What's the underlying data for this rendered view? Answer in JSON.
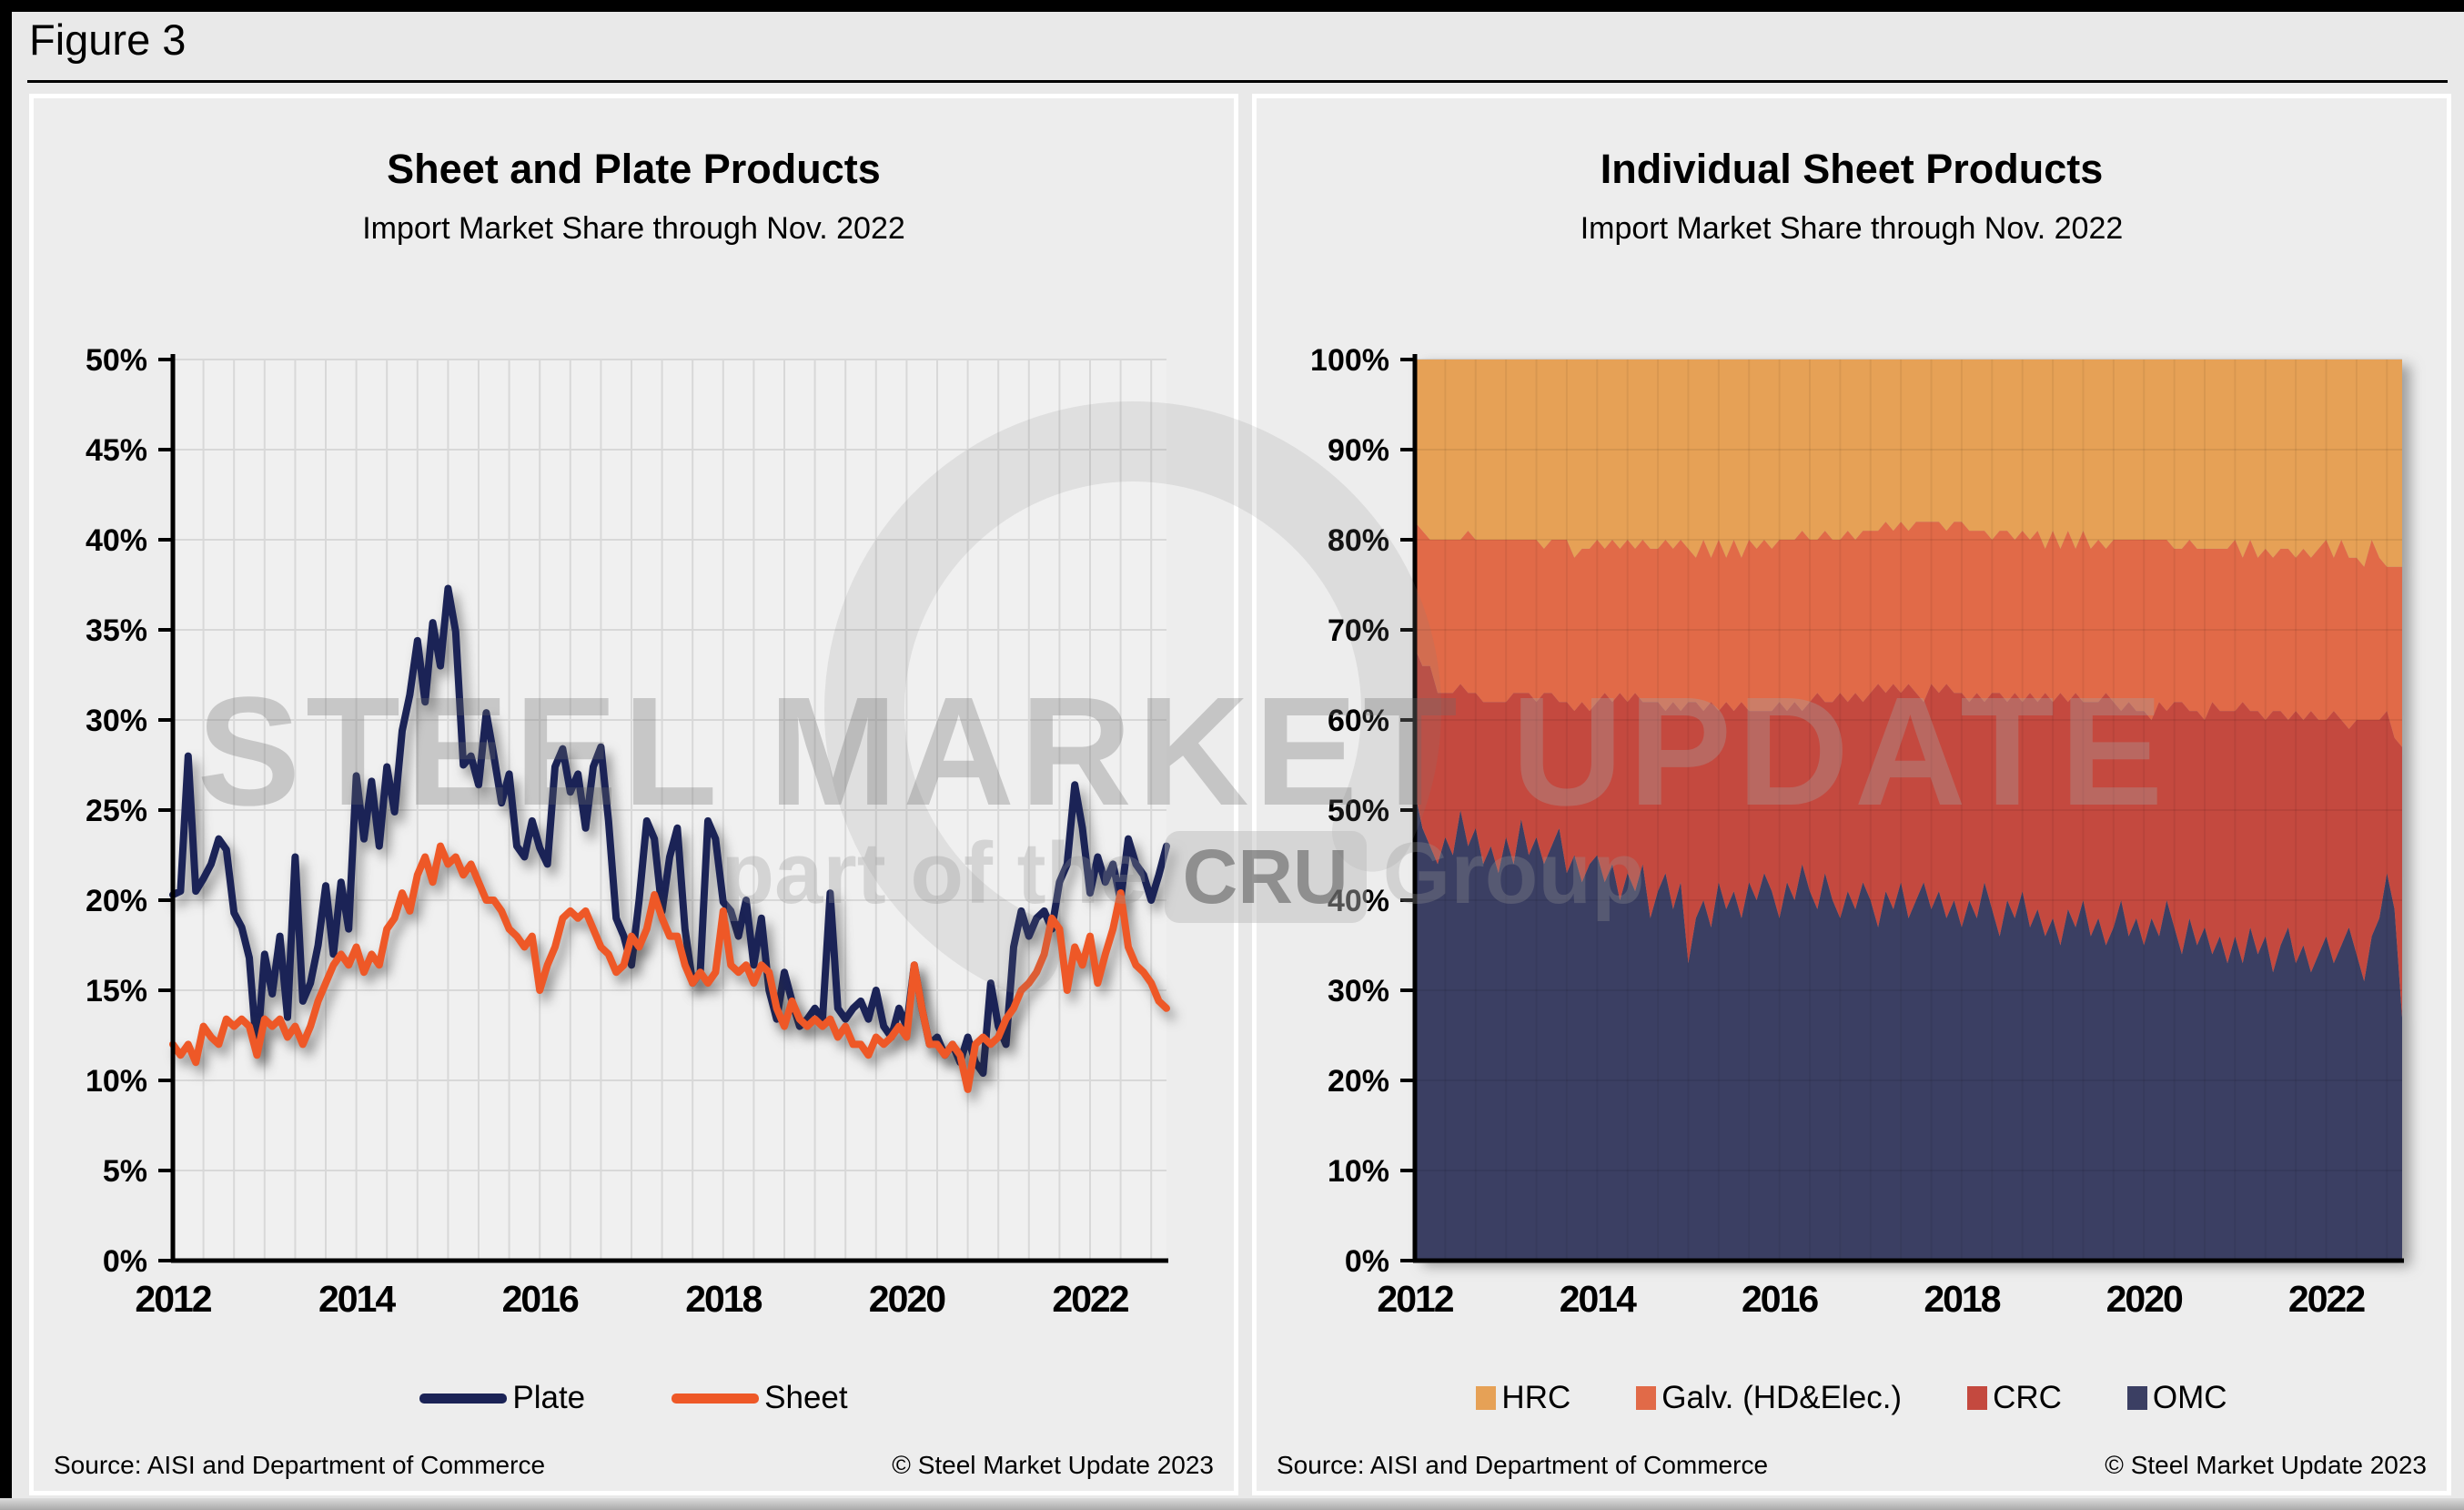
{
  "page": {
    "figure_label": "Figure 3"
  },
  "watermark": {
    "line1_strong": "STEEL MARKET",
    "line1_light": " UPDATE",
    "line2_prefix": "part of the",
    "line2_badge": "CRU",
    "line2_suffix": "Group"
  },
  "chart_data": [
    {
      "type": "line",
      "title": "Sheet and Plate Products",
      "subtitle": "Import Market Share through Nov. 2022",
      "x_start": "Jan 2012",
      "x_end": "Nov 2022",
      "x_frequency": "monthly",
      "x_tick_labels": [
        "2012",
        "2014",
        "2016",
        "2018",
        "2020",
        "2022"
      ],
      "x_tick_month_index": [
        0,
        24,
        48,
        72,
        96,
        120
      ],
      "grid_interval_months": 4,
      "y_tick_labels": [
        "0%",
        "5%",
        "10%",
        "15%",
        "20%",
        "25%",
        "30%",
        "35%",
        "40%",
        "45%",
        "50%"
      ],
      "ylim": [
        0,
        50
      ],
      "grid": true,
      "legend_position": "bottom",
      "plot_bg": "#f0f0f0",
      "grid_color": "#d8d8d8",
      "legend": [
        {
          "label": "Plate",
          "color": "#1b2356"
        },
        {
          "label": "Sheet",
          "color": "#ee5827"
        }
      ],
      "series": [
        {
          "name": "Plate",
          "color": "#1b2356",
          "values": [
            20.3,
            20.5,
            28,
            20.5,
            21.2,
            22,
            23.4,
            22.8,
            19.3,
            18.5,
            16.8,
            11.5,
            17,
            14.8,
            18,
            13.5,
            22.4,
            14.4,
            15.4,
            17.5,
            20.8,
            17,
            21,
            18.4,
            26.9,
            23.4,
            26.6,
            23,
            27.4,
            24.9,
            29.4,
            31.4,
            34.4,
            31,
            35.4,
            33,
            37.3,
            34.9,
            27.5,
            28,
            26.4,
            30.4,
            28,
            25.4,
            27,
            23,
            22.4,
            24.4,
            22.9,
            22,
            27.4,
            28.4,
            26,
            27,
            24,
            27.4,
            28.5,
            24.4,
            19,
            18,
            16.4,
            20,
            24.4,
            23.4,
            19.4,
            22.4,
            24,
            18.4,
            15.4,
            16,
            24.4,
            23.4,
            19.9,
            19.4,
            18,
            20,
            16.4,
            19,
            15,
            13.4,
            16,
            14.4,
            13,
            13.4,
            14,
            13.4,
            20.4,
            14,
            13.4,
            14,
            14.4,
            13.4,
            15,
            13,
            12.4,
            14,
            13,
            16.4,
            14,
            12,
            12.4,
            11.4,
            12,
            11,
            12.4,
            11,
            10.4,
            15.4,
            13,
            12,
            17.4,
            19.4,
            18,
            19,
            19.4,
            18.4,
            21,
            22,
            26.4,
            24,
            20.4,
            22.4,
            21,
            22,
            20,
            23.4,
            22,
            21.4,
            20,
            21.4,
            23
          ]
        },
        {
          "name": "Sheet",
          "color": "#ee5827",
          "values": [
            12,
            11.4,
            12,
            11,
            13,
            12.4,
            12,
            13.4,
            13,
            13.4,
            13,
            11.4,
            13.4,
            13,
            13.4,
            12.4,
            13,
            12,
            13,
            14.4,
            15.4,
            16.4,
            17,
            16.4,
            17.4,
            16,
            17,
            16.4,
            18.4,
            19,
            20.4,
            19.4,
            21.4,
            22.4,
            21,
            23,
            22,
            22.4,
            21.4,
            22,
            21,
            20,
            20,
            19.4,
            18.4,
            18,
            17.4,
            18,
            15,
            16.4,
            17.4,
            19,
            19.4,
            19,
            19.4,
            18.4,
            17.4,
            17,
            16,
            16.4,
            18,
            17.4,
            18.4,
            20.3,
            19,
            18,
            18,
            16.4,
            15.4,
            16,
            15.4,
            16,
            19.4,
            16.4,
            16,
            16.4,
            15.4,
            16.4,
            16,
            14,
            13,
            14.4,
            13.4,
            13,
            13.4,
            13,
            13.4,
            12.4,
            13,
            12,
            12,
            11.4,
            12.4,
            12,
            12.4,
            13,
            12.4,
            16.4,
            14,
            12,
            12,
            11.4,
            12,
            11.4,
            9.5,
            12,
            12.4,
            12,
            12.4,
            13.4,
            14,
            15,
            15.4,
            16,
            17,
            19,
            18.4,
            15,
            17.4,
            16.4,
            18,
            15.4,
            17,
            18.4,
            20.4,
            17.4,
            16.4,
            16,
            15.4,
            14.4,
            14
          ]
        }
      ],
      "source": "Source: AISI and Department of Commerce",
      "copyright": "© Steel Market Update 2023"
    },
    {
      "type": "area",
      "stacked": true,
      "title": "Individual Sheet Products",
      "subtitle": "Import Market Share through Nov. 2022",
      "x_start": "Jan 2012",
      "x_end": "Nov 2022",
      "x_frequency": "monthly",
      "x_tick_labels": [
        "2012",
        "2014",
        "2016",
        "2018",
        "2020",
        "2022"
      ],
      "x_tick_month_index": [
        0,
        24,
        48,
        72,
        96,
        120
      ],
      "grid_interval_months": 4,
      "y_tick_labels": [
        "0%",
        "10%",
        "20%",
        "30%",
        "40%",
        "50%",
        "60%",
        "70%",
        "80%",
        "90%",
        "100%"
      ],
      "ylim": [
        0,
        100
      ],
      "grid": true,
      "legend_position": "bottom",
      "plot_bg": "#f0f0f0",
      "grid_color": "#d8d8d8",
      "legend": [
        {
          "label": "HRC",
          "color": "#e6a156"
        },
        {
          "label": "Galv. (HD&Elec.)",
          "color": "#e16a48"
        },
        {
          "label": "CRC",
          "color": "#c4493f"
        },
        {
          "label": "OMC",
          "color": "#3b3f63"
        }
      ],
      "series": [
        {
          "name": "OMC",
          "color": "#3b3f63",
          "values": [
            52,
            48,
            46,
            44,
            47,
            45,
            50,
            46,
            48,
            44,
            46,
            43,
            47,
            44,
            49,
            45,
            47,
            44,
            46,
            48,
            43,
            45,
            42,
            44,
            45,
            42,
            44,
            40,
            43,
            41,
            44,
            38,
            41,
            43,
            39,
            42,
            33,
            38,
            40,
            37,
            42,
            39,
            41,
            38,
            42,
            40,
            43,
            41,
            38,
            42,
            40,
            44,
            41,
            39,
            43,
            40,
            38,
            41,
            39,
            42,
            40,
            37,
            41,
            39,
            42,
            38,
            40,
            42,
            39,
            41,
            38,
            40,
            37,
            40,
            38,
            42,
            39,
            36,
            40,
            38,
            41,
            37,
            39,
            36,
            38,
            35,
            39,
            37,
            40,
            36,
            38,
            35,
            37,
            40,
            36,
            38,
            35,
            38,
            36,
            40,
            37,
            34,
            38,
            35,
            37,
            34,
            36,
            33,
            36,
            33,
            37,
            34,
            36,
            32,
            35,
            37,
            33,
            35,
            32,
            34,
            36,
            33,
            35,
            37,
            34,
            31,
            36,
            38,
            43,
            39,
            27
          ]
        },
        {
          "name": "CRC",
          "color": "#c4493f",
          "values": [
            16,
            18,
            20,
            19,
            16,
            18,
            14,
            17,
            15,
            18,
            16,
            19,
            15,
            19,
            14,
            18,
            15,
            19,
            17,
            14,
            19,
            16,
            20,
            17,
            17,
            21,
            18,
            23,
            19,
            22,
            18,
            24,
            21,
            18,
            23,
            19,
            29,
            24,
            21,
            25,
            19,
            23,
            20,
            24,
            19,
            21,
            18,
            20,
            24,
            19,
            22,
            17,
            21,
            24,
            19,
            22,
            25,
            21,
            24,
            20,
            23,
            27,
            22,
            25,
            21,
            26,
            23,
            20,
            25,
            22,
            26,
            23,
            26,
            22,
            25,
            20,
            24,
            27,
            22,
            25,
            21,
            26,
            23,
            27,
            24,
            28,
            23,
            26,
            22,
            26,
            24,
            28,
            25,
            21,
            26,
            23,
            26,
            22,
            26,
            21,
            25,
            28,
            23,
            26,
            23,
            28,
            25,
            28,
            25,
            29,
            24,
            27,
            24,
            29,
            26,
            23,
            28,
            25,
            29,
            26,
            24,
            28,
            25,
            22,
            26,
            29,
            24,
            22,
            18,
            19,
            30
          ]
        },
        {
          "name": "Galv. (HD&Elec.)",
          "color": "#e16a48",
          "values": [
            14,
            15,
            14,
            17,
            17,
            17,
            16,
            18,
            17,
            18,
            18,
            18,
            18,
            17,
            17,
            17,
            18,
            16,
            17,
            18,
            18,
            17,
            17,
            18,
            18,
            16,
            18,
            16,
            18,
            16,
            18,
            17,
            17,
            19,
            17,
            19,
            17,
            16,
            19,
            16,
            19,
            16,
            19,
            16,
            19,
            18,
            19,
            18,
            18,
            19,
            18,
            20,
            18,
            17,
            19,
            18,
            17,
            19,
            17,
            19,
            18,
            17,
            19,
            17,
            19,
            17,
            19,
            20,
            18,
            19,
            17,
            19,
            19,
            19,
            18,
            19,
            17,
            18,
            19,
            17,
            19,
            17,
            19,
            16,
            19,
            16,
            19,
            16,
            19,
            17,
            18,
            16,
            18,
            19,
            18,
            19,
            19,
            20,
            18,
            19,
            17,
            17,
            19,
            18,
            19,
            17,
            18,
            18,
            19,
            16,
            19,
            17,
            19,
            17,
            18,
            19,
            17,
            19,
            17,
            19,
            20,
            17,
            20,
            19,
            18,
            17,
            20,
            18,
            16,
            19,
            20
          ]
        },
        {
          "name": "HRC",
          "color": "#e6a156",
          "values": [
            18,
            19,
            20,
            20,
            20,
            20,
            20,
            19,
            20,
            20,
            20,
            20,
            20,
            20,
            20,
            20,
            20,
            21,
            20,
            20,
            20,
            22,
            21,
            21,
            20,
            21,
            20,
            21,
            20,
            21,
            20,
            21,
            21,
            20,
            21,
            20,
            21,
            22,
            20,
            22,
            20,
            22,
            20,
            22,
            20,
            21,
            20,
            21,
            20,
            20,
            20,
            19,
            20,
            20,
            19,
            20,
            20,
            19,
            20,
            19,
            19,
            19,
            18,
            19,
            18,
            19,
            18,
            18,
            18,
            18,
            19,
            18,
            18,
            19,
            19,
            19,
            20,
            19,
            19,
            20,
            19,
            20,
            19,
            21,
            19,
            21,
            19,
            21,
            19,
            21,
            20,
            21,
            20,
            20,
            20,
            20,
            20,
            20,
            20,
            20,
            21,
            21,
            20,
            21,
            21,
            21,
            21,
            21,
            20,
            22,
            20,
            22,
            21,
            22,
            21,
            21,
            22,
            21,
            22,
            21,
            20,
            22,
            20,
            22,
            22,
            23,
            20,
            22,
            23,
            23,
            23
          ]
        }
      ],
      "source": "Source: AISI and Department of Commerce",
      "copyright": "© Steel Market Update 2023"
    }
  ]
}
